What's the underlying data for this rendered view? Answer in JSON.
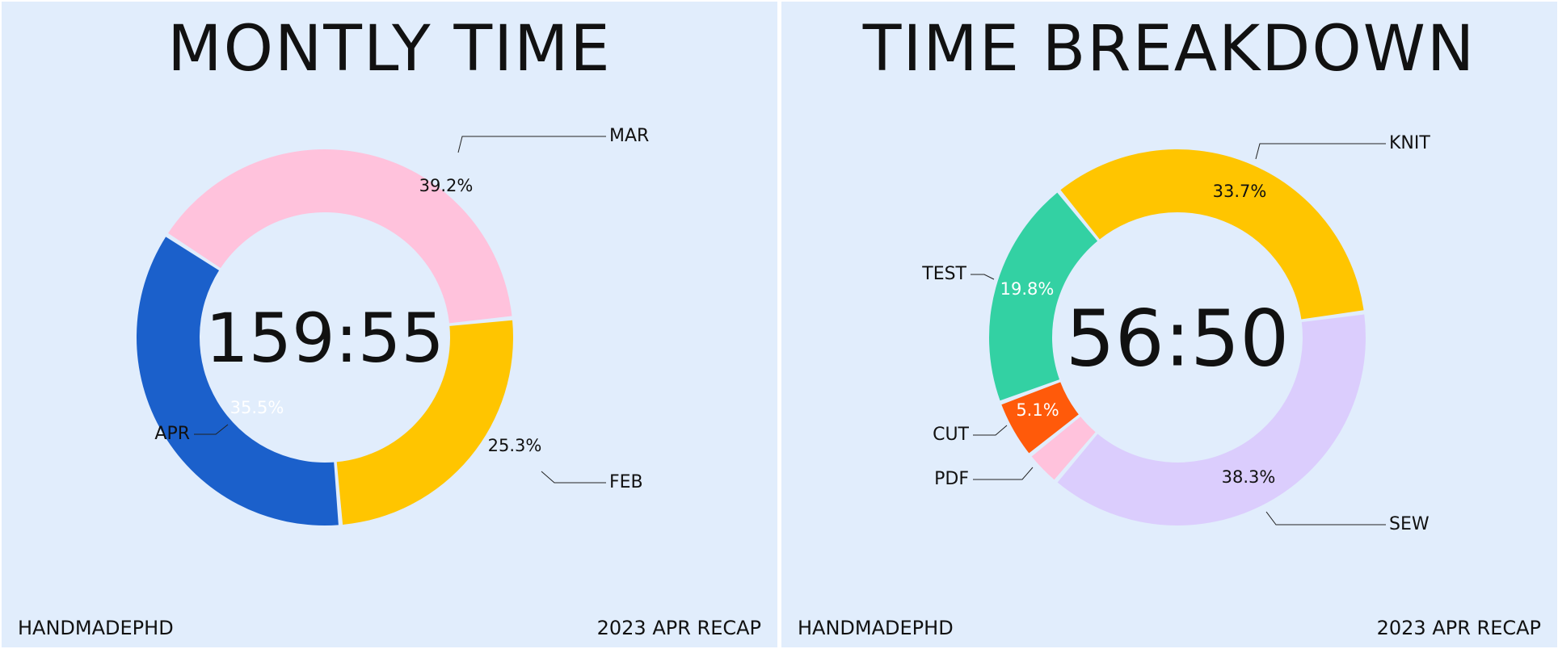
{
  "chart_data": [
    {
      "type": "pie",
      "title": "MONTLY TIME",
      "center_text": "159:55",
      "slices": [
        {
          "label": "MAR",
          "value": 39.2,
          "value_label": "39.2%",
          "color": "#ffc2dc"
        },
        {
          "label": "FEB",
          "value": 25.3,
          "value_label": "25.3%",
          "color": "#ffc500"
        },
        {
          "label": "APR",
          "value": 35.5,
          "value_label": "35.5%",
          "color": "#1b60cb"
        }
      ]
    },
    {
      "type": "pie",
      "title": "TIME BREAKDOWN",
      "center_text": "56:50",
      "slices": [
        {
          "label": "KNIT",
          "value": 33.7,
          "value_label": "33.7%",
          "color": "#ffc500"
        },
        {
          "label": "SEW",
          "value": 38.3,
          "value_label": "38.3%",
          "color": "#dbcdfd"
        },
        {
          "label": "PDF",
          "value": 3.1,
          "value_label": "",
          "color": "#ffc2dc"
        },
        {
          "label": "CUT",
          "value": 5.1,
          "value_label": "5.1%",
          "color": "#ff5a0a"
        },
        {
          "label": "TEST",
          "value": 19.8,
          "value_label": "19.8%",
          "color": "#33d1a3"
        }
      ]
    }
  ],
  "footer": {
    "left_text": "HANDMADEPHD",
    "right_text": "2023 APR RECAP"
  }
}
